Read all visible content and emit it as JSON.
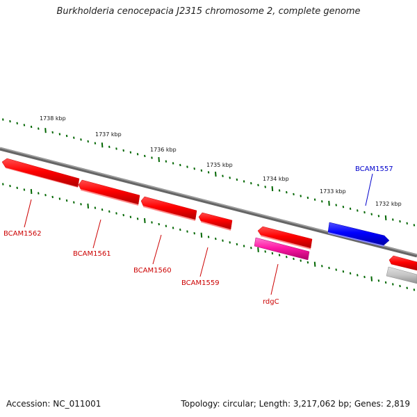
{
  "title": "Burkholderia cenocepacia J2315 chromosome 2, complete genome",
  "footer": {
    "accession_label": "Accession: NC_011001",
    "summary": "Topology: circular; Length: 3,217,062 bp; Genes: 2,819"
  },
  "ticks": [
    {
      "label": "1738 kbp"
    },
    {
      "label": "1737 kbp"
    },
    {
      "label": "1736 kbp"
    },
    {
      "label": "1735 kbp"
    },
    {
      "label": "1734 kbp"
    },
    {
      "label": "1733 kbp"
    },
    {
      "label": "1732 kbp"
    }
  ],
  "genes": [
    {
      "name": "BCAM1562",
      "color": "#dd0000",
      "strand": "reverse"
    },
    {
      "name": "BCAM1561",
      "color": "#dd0000",
      "strand": "reverse"
    },
    {
      "name": "BCAM1560",
      "color": "#dd0000",
      "strand": "reverse"
    },
    {
      "name": "BCAM1559",
      "color": "#dd0000",
      "strand": "reverse"
    },
    {
      "name": "rdgC",
      "color": "#dd0000",
      "strand": "reverse"
    },
    {
      "name": "BCAM1557",
      "color": "#0000cc",
      "strand": "forward"
    }
  ],
  "colors": {
    "backbone": "#808080",
    "tick": "#006600",
    "gene_reverse": "#ff0000",
    "gene_forward": "#0000ff",
    "rna": "#ff1493",
    "pseudo": "#bbbbbb"
  }
}
